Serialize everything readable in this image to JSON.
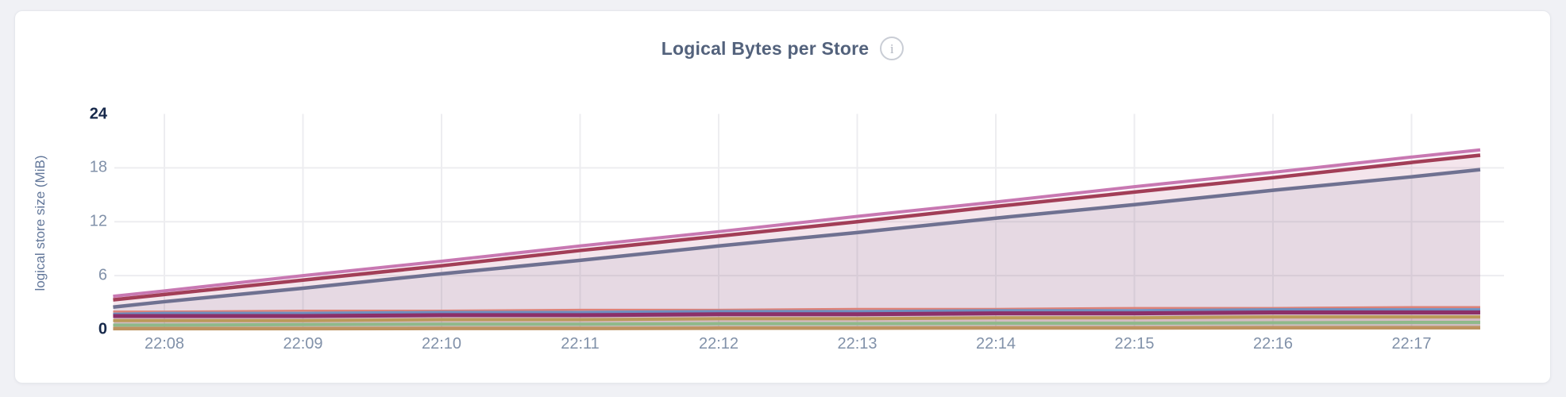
{
  "page": {
    "background": "#f0f1f5"
  },
  "card": {
    "background": "#ffffff",
    "border_color": "#e6e8ed"
  },
  "header": {
    "title": "Logical Bytes per Store",
    "info_icon_glyph": "i"
  },
  "chart_data": {
    "type": "area",
    "title": "Logical Bytes per Store",
    "xlabel": "",
    "ylabel": "logical store size (MiB)",
    "y_unit": "MiB",
    "ylim": [
      0,
      24
    ],
    "yticks": [
      {
        "value": 0,
        "label": "0",
        "emphasis": true
      },
      {
        "value": 6,
        "label": "6",
        "emphasis": false
      },
      {
        "value": 12,
        "label": "12",
        "emphasis": false
      },
      {
        "value": 18,
        "label": "18",
        "emphasis": false
      },
      {
        "value": 24,
        "label": "24",
        "emphasis": true
      }
    ],
    "grid": {
      "horizontal_at": [
        6,
        12,
        18
      ],
      "vertical_at_each_x_tick": true,
      "color": "#ededf0"
    },
    "legend_position": "none",
    "axis_text_color": "#8191a9",
    "axis_emphasis_color": "#17294b",
    "x_tick_labels": [
      "22:08",
      "22:09",
      "22:10",
      "22:11",
      "22:12",
      "22:13",
      "22:14",
      "22:15",
      "22:16",
      "22:17"
    ],
    "x_minutes_from_2208": [
      -0.37,
      0,
      1,
      2,
      3,
      4,
      5,
      6,
      7,
      8,
      9,
      9.5
    ],
    "series": [
      {
        "id": "series-1-orchid",
        "color": "#c878b2",
        "width": 4,
        "fill_opacity": 0.08,
        "values": [
          3.7,
          4.3,
          6.0,
          7.6,
          9.3,
          10.9,
          12.6,
          14.2,
          15.9,
          17.5,
          19.2,
          20.0
        ]
      },
      {
        "id": "series-2-crimson",
        "color": "#a23e57",
        "width": 4.5,
        "fill_opacity": 0.08,
        "values": [
          3.3,
          3.9,
          5.5,
          7.1,
          8.8,
          10.4,
          12.0,
          13.7,
          15.3,
          16.9,
          18.6,
          19.4
        ]
      },
      {
        "id": "series-3-slate",
        "color": "#6f7191",
        "width": 4.5,
        "fill_opacity": 0.1,
        "values": [
          2.5,
          3.1,
          4.6,
          6.2,
          7.7,
          9.3,
          10.8,
          12.4,
          13.9,
          15.5,
          17.0,
          17.8
        ]
      },
      {
        "id": "series-4-coral",
        "color": "#dd8278",
        "width": 2.5,
        "fill_opacity": 0.08,
        "values": [
          2.0,
          2.0,
          2.1,
          2.1,
          2.2,
          2.2,
          2.3,
          2.3,
          2.4,
          2.4,
          2.5,
          2.5
        ]
      },
      {
        "id": "series-5-steel-blue",
        "color": "#6f8fc0",
        "width": 4,
        "fill_opacity": 0.08,
        "values": [
          1.7,
          1.8,
          1.8,
          1.9,
          1.9,
          2.0,
          2.0,
          2.1,
          2.1,
          2.2,
          2.2,
          2.2
        ]
      },
      {
        "id": "series-6-dark-magenta",
        "color": "#8b3069",
        "width": 5,
        "fill_opacity": 0.08,
        "values": [
          1.5,
          1.5,
          1.5,
          1.6,
          1.6,
          1.7,
          1.7,
          1.8,
          1.8,
          1.9,
          1.9,
          1.9
        ]
      },
      {
        "id": "series-7-gold",
        "color": "#bb9a59",
        "width": 4,
        "fill_opacity": 0.08,
        "values": [
          1.0,
          1.0,
          1.0,
          1.1,
          1.1,
          1.2,
          1.2,
          1.3,
          1.3,
          1.4,
          1.4,
          1.4
        ]
      },
      {
        "id": "series-8-green",
        "color": "#8fb98a",
        "width": 4,
        "fill_opacity": 0.08,
        "values": [
          0.5,
          0.5,
          0.55,
          0.6,
          0.6,
          0.65,
          0.65,
          0.7,
          0.7,
          0.75,
          0.8,
          0.8
        ]
      },
      {
        "id": "series-9-camel",
        "color": "#bd9360",
        "width": 4.5,
        "fill_opacity": 0.08,
        "values": [
          0.1,
          0.1,
          0.1,
          0.12,
          0.12,
          0.15,
          0.15,
          0.18,
          0.18,
          0.2,
          0.2,
          0.2
        ]
      }
    ]
  }
}
